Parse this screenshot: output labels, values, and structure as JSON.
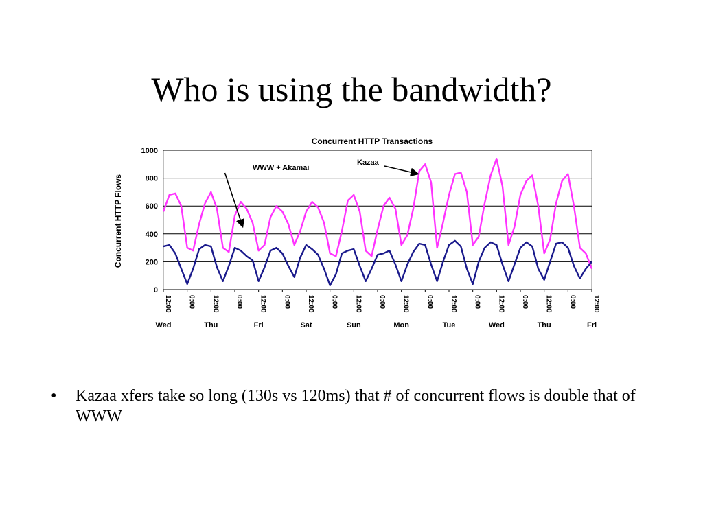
{
  "slide": {
    "title": "Who is using the bandwidth?",
    "bullets": [
      {
        "marker": "•",
        "text": "Kazaa xfers take so long (130s vs 120ms) that # of concurrent flows is double that of WWW"
      }
    ]
  },
  "chart_data": {
    "type": "line",
    "title": "Concurrent HTTP Transactions",
    "xlabel": "",
    "ylabel": "Concurrent HTTP Flows",
    "ylim": [
      0,
      1000
    ],
    "yticks": [
      0,
      200,
      400,
      600,
      800,
      1000
    ],
    "grid": true,
    "legend": "none",
    "x_tick_labels": [
      "12:00",
      "0:00",
      "12:00",
      "0:00",
      "12:00",
      "0:00",
      "12:00",
      "0:00",
      "12:00",
      "0:00",
      "12:00",
      "0:00",
      "12:00",
      "0:00",
      "12:00",
      "0:00",
      "12:00",
      "0:00",
      "12:00"
    ],
    "x_day_labels": [
      "Wed",
      "Thu",
      "Fri",
      "Sat",
      "Sun",
      "Mon",
      "Tue",
      "Wed",
      "Thu",
      "Fri"
    ],
    "x_hours": [
      0,
      24,
      48,
      72,
      96,
      120,
      144,
      168,
      192,
      216,
      240,
      264,
      288,
      312,
      336,
      360,
      384,
      408,
      432
    ],
    "colors": {
      "kazaa": "#ff33ff",
      "www": "#1a1a8c",
      "plot_bg": "#ffffff",
      "grid": "#000000"
    },
    "series": [
      {
        "name": "Kazaa",
        "color": "#ff33ff",
        "x": [
          0,
          6,
          12,
          18,
          24,
          30,
          36,
          42,
          48,
          54,
          60,
          66,
          72,
          78,
          84,
          90,
          96,
          102,
          108,
          114,
          120,
          126,
          132,
          138,
          144,
          150,
          156,
          162,
          168,
          174,
          180,
          186,
          192,
          198,
          204,
          210,
          216,
          222,
          228,
          234,
          240,
          246,
          252,
          258,
          264,
          270,
          276,
          282,
          288,
          294,
          300,
          306,
          312,
          318,
          324,
          330,
          336,
          342,
          348,
          354,
          360,
          366,
          372,
          378,
          384,
          390,
          396,
          402,
          408,
          414,
          420,
          426,
          432
        ],
        "values": [
          560,
          680,
          690,
          600,
          300,
          280,
          470,
          620,
          700,
          580,
          300,
          270,
          530,
          630,
          580,
          480,
          280,
          320,
          520,
          600,
          560,
          470,
          320,
          420,
          560,
          630,
          590,
          480,
          260,
          240,
          420,
          640,
          680,
          560,
          280,
          240,
          430,
          600,
          660,
          580,
          320,
          390,
          580,
          850,
          900,
          770,
          300,
          480,
          680,
          830,
          840,
          700,
          320,
          380,
          620,
          820,
          940,
          740,
          320,
          450,
          680,
          780,
          820,
          600,
          260,
          360,
          620,
          780,
          830,
          600,
          300,
          260,
          150
        ]
      },
      {
        "name": "WWW + Akamai",
        "color": "#1a1a8c",
        "x": [
          0,
          6,
          12,
          18,
          24,
          30,
          36,
          42,
          48,
          54,
          60,
          66,
          72,
          78,
          84,
          90,
          96,
          102,
          108,
          114,
          120,
          126,
          132,
          138,
          144,
          150,
          156,
          162,
          168,
          174,
          180,
          186,
          192,
          198,
          204,
          210,
          216,
          222,
          228,
          234,
          240,
          246,
          252,
          258,
          264,
          270,
          276,
          282,
          288,
          294,
          300,
          306,
          312,
          318,
          324,
          330,
          336,
          342,
          348,
          354,
          360,
          366,
          372,
          378,
          384,
          390,
          396,
          402,
          408,
          414,
          420,
          426,
          432
        ],
        "values": [
          310,
          320,
          260,
          150,
          40,
          150,
          290,
          320,
          310,
          160,
          60,
          170,
          300,
          280,
          240,
          210,
          60,
          160,
          280,
          300,
          260,
          170,
          90,
          230,
          320,
          290,
          250,
          150,
          30,
          110,
          260,
          280,
          290,
          170,
          60,
          150,
          250,
          260,
          280,
          180,
          60,
          180,
          270,
          330,
          320,
          180,
          60,
          200,
          320,
          350,
          310,
          150,
          40,
          200,
          300,
          340,
          320,
          180,
          60,
          180,
          300,
          340,
          310,
          150,
          70,
          200,
          330,
          340,
          300,
          170,
          80,
          150,
          200
        ]
      }
    ],
    "annotations": [
      {
        "text": "WWW + Akamai",
        "points_to_series": "WWW + Akamai"
      },
      {
        "text": "Kazaa",
        "points_to_series": "Kazaa"
      }
    ]
  }
}
